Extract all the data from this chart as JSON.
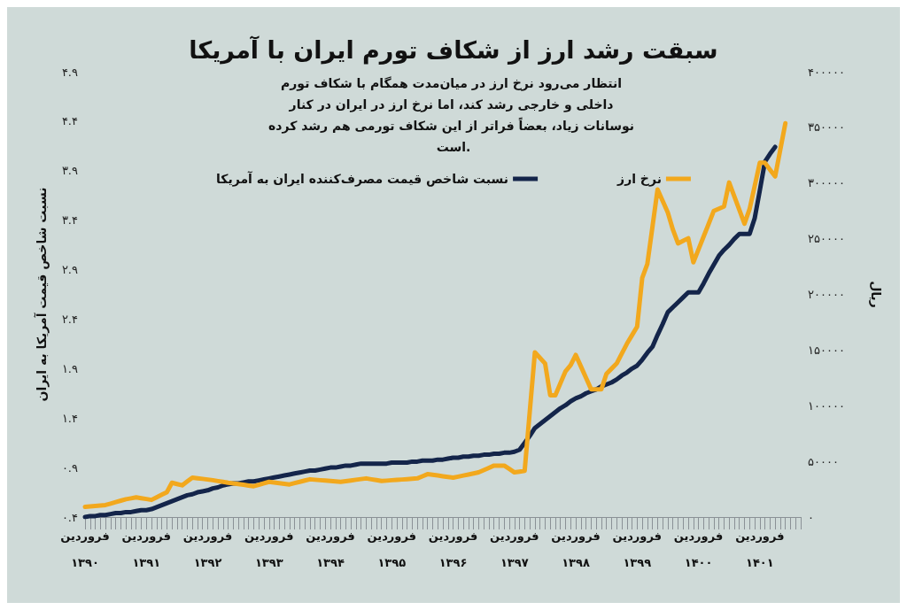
{
  "chart_data": {
    "type": "line",
    "title": "سبقت رشد ارز از شکاف تورم ایران با آمریکا",
    "subtitle": "انتظار می‌رود نرخ ارز در میان‌مدت همگام با شکاف تورم داخلی و خارجی رشد کند، اما نرخ ارز در ایران در کنار نوسانات زیاد، بعضاً فراتر از این شکاف تورمی هم رشد کرده است.",
    "ylabel": "نسبت شاخص قیمت آمریکا به ایران",
    "y2label": "ریال",
    "categories": [
      "فروردین\n۱۳۹۰",
      null,
      null,
      null,
      null,
      null,
      null,
      null,
      null,
      null,
      null,
      null,
      "فروردین\n۱۳۹۱",
      null,
      null,
      null,
      null,
      null,
      null,
      null,
      null,
      null,
      null,
      null,
      "فروردین\n۱۳۹۲",
      null,
      null,
      null,
      null,
      null,
      null,
      null,
      null,
      null,
      null,
      null,
      "فروردین\n۱۳۹۳",
      null,
      null,
      null,
      null,
      null,
      null,
      null,
      null,
      null,
      null,
      null,
      "فروردین\n۱۳۹۴",
      null,
      null,
      null,
      null,
      null,
      null,
      null,
      null,
      null,
      null,
      null,
      "فروردین\n۱۳۹۵",
      null,
      null,
      null,
      null,
      null,
      null,
      null,
      null,
      null,
      null,
      null,
      "فروردین\n۱۳۹۶",
      null,
      null,
      null,
      null,
      null,
      null,
      null,
      null,
      null,
      null,
      null,
      "فروردین\n۱۳۹۷",
      null,
      null,
      null,
      null,
      null,
      null,
      null,
      null,
      null,
      null,
      null,
      "فروردین\n۱۳۹۸",
      null,
      null,
      null,
      null,
      null,
      null,
      null,
      null,
      null,
      null,
      null,
      "فروردین\n۱۳۹۹",
      null,
      null,
      null,
      null,
      null,
      null,
      null,
      null,
      null,
      null,
      null,
      "فروردین\n۱۴۰۰",
      null,
      null,
      null,
      null,
      null,
      null,
      null,
      null,
      null,
      null,
      null,
      "فروردین\n۱۴۰۱",
      null,
      null,
      null,
      null,
      null,
      null,
      null,
      null
    ],
    "ylim": [
      0.4,
      4.9
    ],
    "yticks": [
      {
        "value": 0.4,
        "label": "۰.۴"
      },
      {
        "value": 0.9,
        "label": "۰.۹"
      },
      {
        "value": 1.4,
        "label": "۱.۴"
      },
      {
        "value": 1.9,
        "label": "۱.۹"
      },
      {
        "value": 2.4,
        "label": "۲.۴"
      },
      {
        "value": 2.9,
        "label": "۲.۹"
      },
      {
        "value": 3.4,
        "label": "۳.۴"
      },
      {
        "value": 3.9,
        "label": "۳.۹"
      },
      {
        "value": 4.4,
        "label": "۴.۴"
      },
      {
        "value": 4.9,
        "label": "۴.۹"
      }
    ],
    "y2lim": [
      0,
      400000
    ],
    "y2ticks": [
      {
        "value": 0,
        "label": "۰"
      },
      {
        "value": 50000,
        "label": "۵۰۰۰۰"
      },
      {
        "value": 100000,
        "label": "۱۰۰۰۰۰"
      },
      {
        "value": 150000,
        "label": "۱۵۰۰۰۰"
      },
      {
        "value": 200000,
        "label": "۲۰۰۰۰۰"
      },
      {
        "value": 250000,
        "label": "۲۵۰۰۰۰"
      },
      {
        "value": 300000,
        "label": "۳۰۰۰۰۰"
      },
      {
        "value": 350000,
        "label": "۳۵۰۰۰۰"
      },
      {
        "value": 400000,
        "label": "۴۰۰۰۰۰"
      }
    ],
    "grid": false,
    "legend": "top",
    "marker": "none",
    "line_style": "solid",
    "series": [
      {
        "name": "نسبت شاخص قیمت مصرف‌کننده ایران به آمریکا",
        "color": "#14254a",
        "values": [
          0.4,
          0.41,
          0.41,
          0.42,
          0.42,
          0.43,
          0.44,
          0.44,
          0.45,
          0.45,
          0.46,
          0.47,
          0.47,
          0.48,
          0.5,
          0.52,
          0.54,
          0.56,
          0.58,
          0.6,
          0.62,
          0.63,
          0.65,
          0.66,
          0.67,
          0.69,
          0.7,
          0.72,
          0.73,
          0.74,
          0.74,
          0.75,
          0.76,
          0.76,
          0.77,
          0.78,
          0.79,
          0.8,
          0.81,
          0.82,
          0.83,
          0.84,
          0.85,
          0.86,
          0.87,
          0.87,
          0.88,
          0.89,
          0.9,
          0.9,
          0.91,
          0.92,
          0.92,
          0.93,
          0.94,
          0.94,
          0.94,
          0.94,
          0.94,
          0.94,
          0.95,
          0.95,
          0.95,
          0.95,
          0.96,
          0.96,
          0.97,
          0.97,
          0.97,
          0.98,
          0.98,
          0.99,
          1.0,
          1.0,
          1.01,
          1.01,
          1.02,
          1.02,
          1.03,
          1.03,
          1.04,
          1.04,
          1.05,
          1.05,
          1.06,
          1.08,
          1.15,
          1.22,
          1.3,
          1.34,
          1.38,
          1.42,
          1.46,
          1.5,
          1.53,
          1.57,
          1.6,
          1.62,
          1.65,
          1.67,
          1.69,
          1.72,
          1.74,
          1.76,
          1.79,
          1.83,
          1.86,
          1.9,
          1.93,
          1.99,
          2.06,
          2.12,
          2.24,
          2.35,
          2.47,
          2.52,
          2.57,
          2.62,
          2.67,
          2.67,
          2.67,
          2.76,
          2.86,
          2.95,
          3.04,
          3.1,
          3.15,
          3.21,
          3.26,
          3.26,
          3.26,
          3.42,
          3.7,
          3.99,
          4.07,
          4.14,
          null,
          null,
          null,
          null,
          null
        ]
      },
      {
        "name": "نرخ ارز",
        "color": "#f2a81d",
        "axis": "y2",
        "values": [
          9200,
          9600,
          10000,
          10400,
          10800,
          12100,
          13400,
          14700,
          16000,
          16800,
          17700,
          16900,
          16200,
          15400,
          17700,
          20000,
          22300,
          30800,
          29600,
          28500,
          32000,
          35400,
          34800,
          34300,
          33700,
          33100,
          32300,
          31600,
          30800,
          30200,
          29600,
          29000,
          28300,
          27700,
          29000,
          30300,
          31600,
          31000,
          30500,
          29900,
          29300,
          30500,
          31600,
          32800,
          33900,
          33500,
          33100,
          32800,
          32400,
          32000,
          31600,
          32200,
          32800,
          33500,
          34100,
          34700,
          33900,
          33200,
          32400,
          32700,
          33100,
          33400,
          33700,
          34000,
          34400,
          34700,
          36600,
          38500,
          37900,
          37300,
          36600,
          36000,
          35400,
          36300,
          37300,
          38200,
          39200,
          40100,
          42100,
          44200,
          46200,
          46200,
          46200,
          43200,
          40100,
          40800,
          41600,
          94800,
          147900,
          142900,
          137900,
          109400,
          109400,
          120200,
          131000,
          136400,
          145600,
          135300,
          125100,
          114800,
          114800,
          114800,
          128700,
          133300,
          137900,
          146800,
          155600,
          163300,
          171000,
          214900,
          227300,
          260800,
          294300,
          283900,
          273500,
          258100,
          245800,
          248100,
          250400,
          228800,
          240300,
          251900,
          263400,
          275000,
          277000,
          278900,
          300500,
          288200,
          275800,
          263500,
          276600,
          297400,
          318200,
          318200,
          312000,
          305900,
          329800,
          353700,
          null,
          null,
          null
        ]
      }
    ]
  }
}
